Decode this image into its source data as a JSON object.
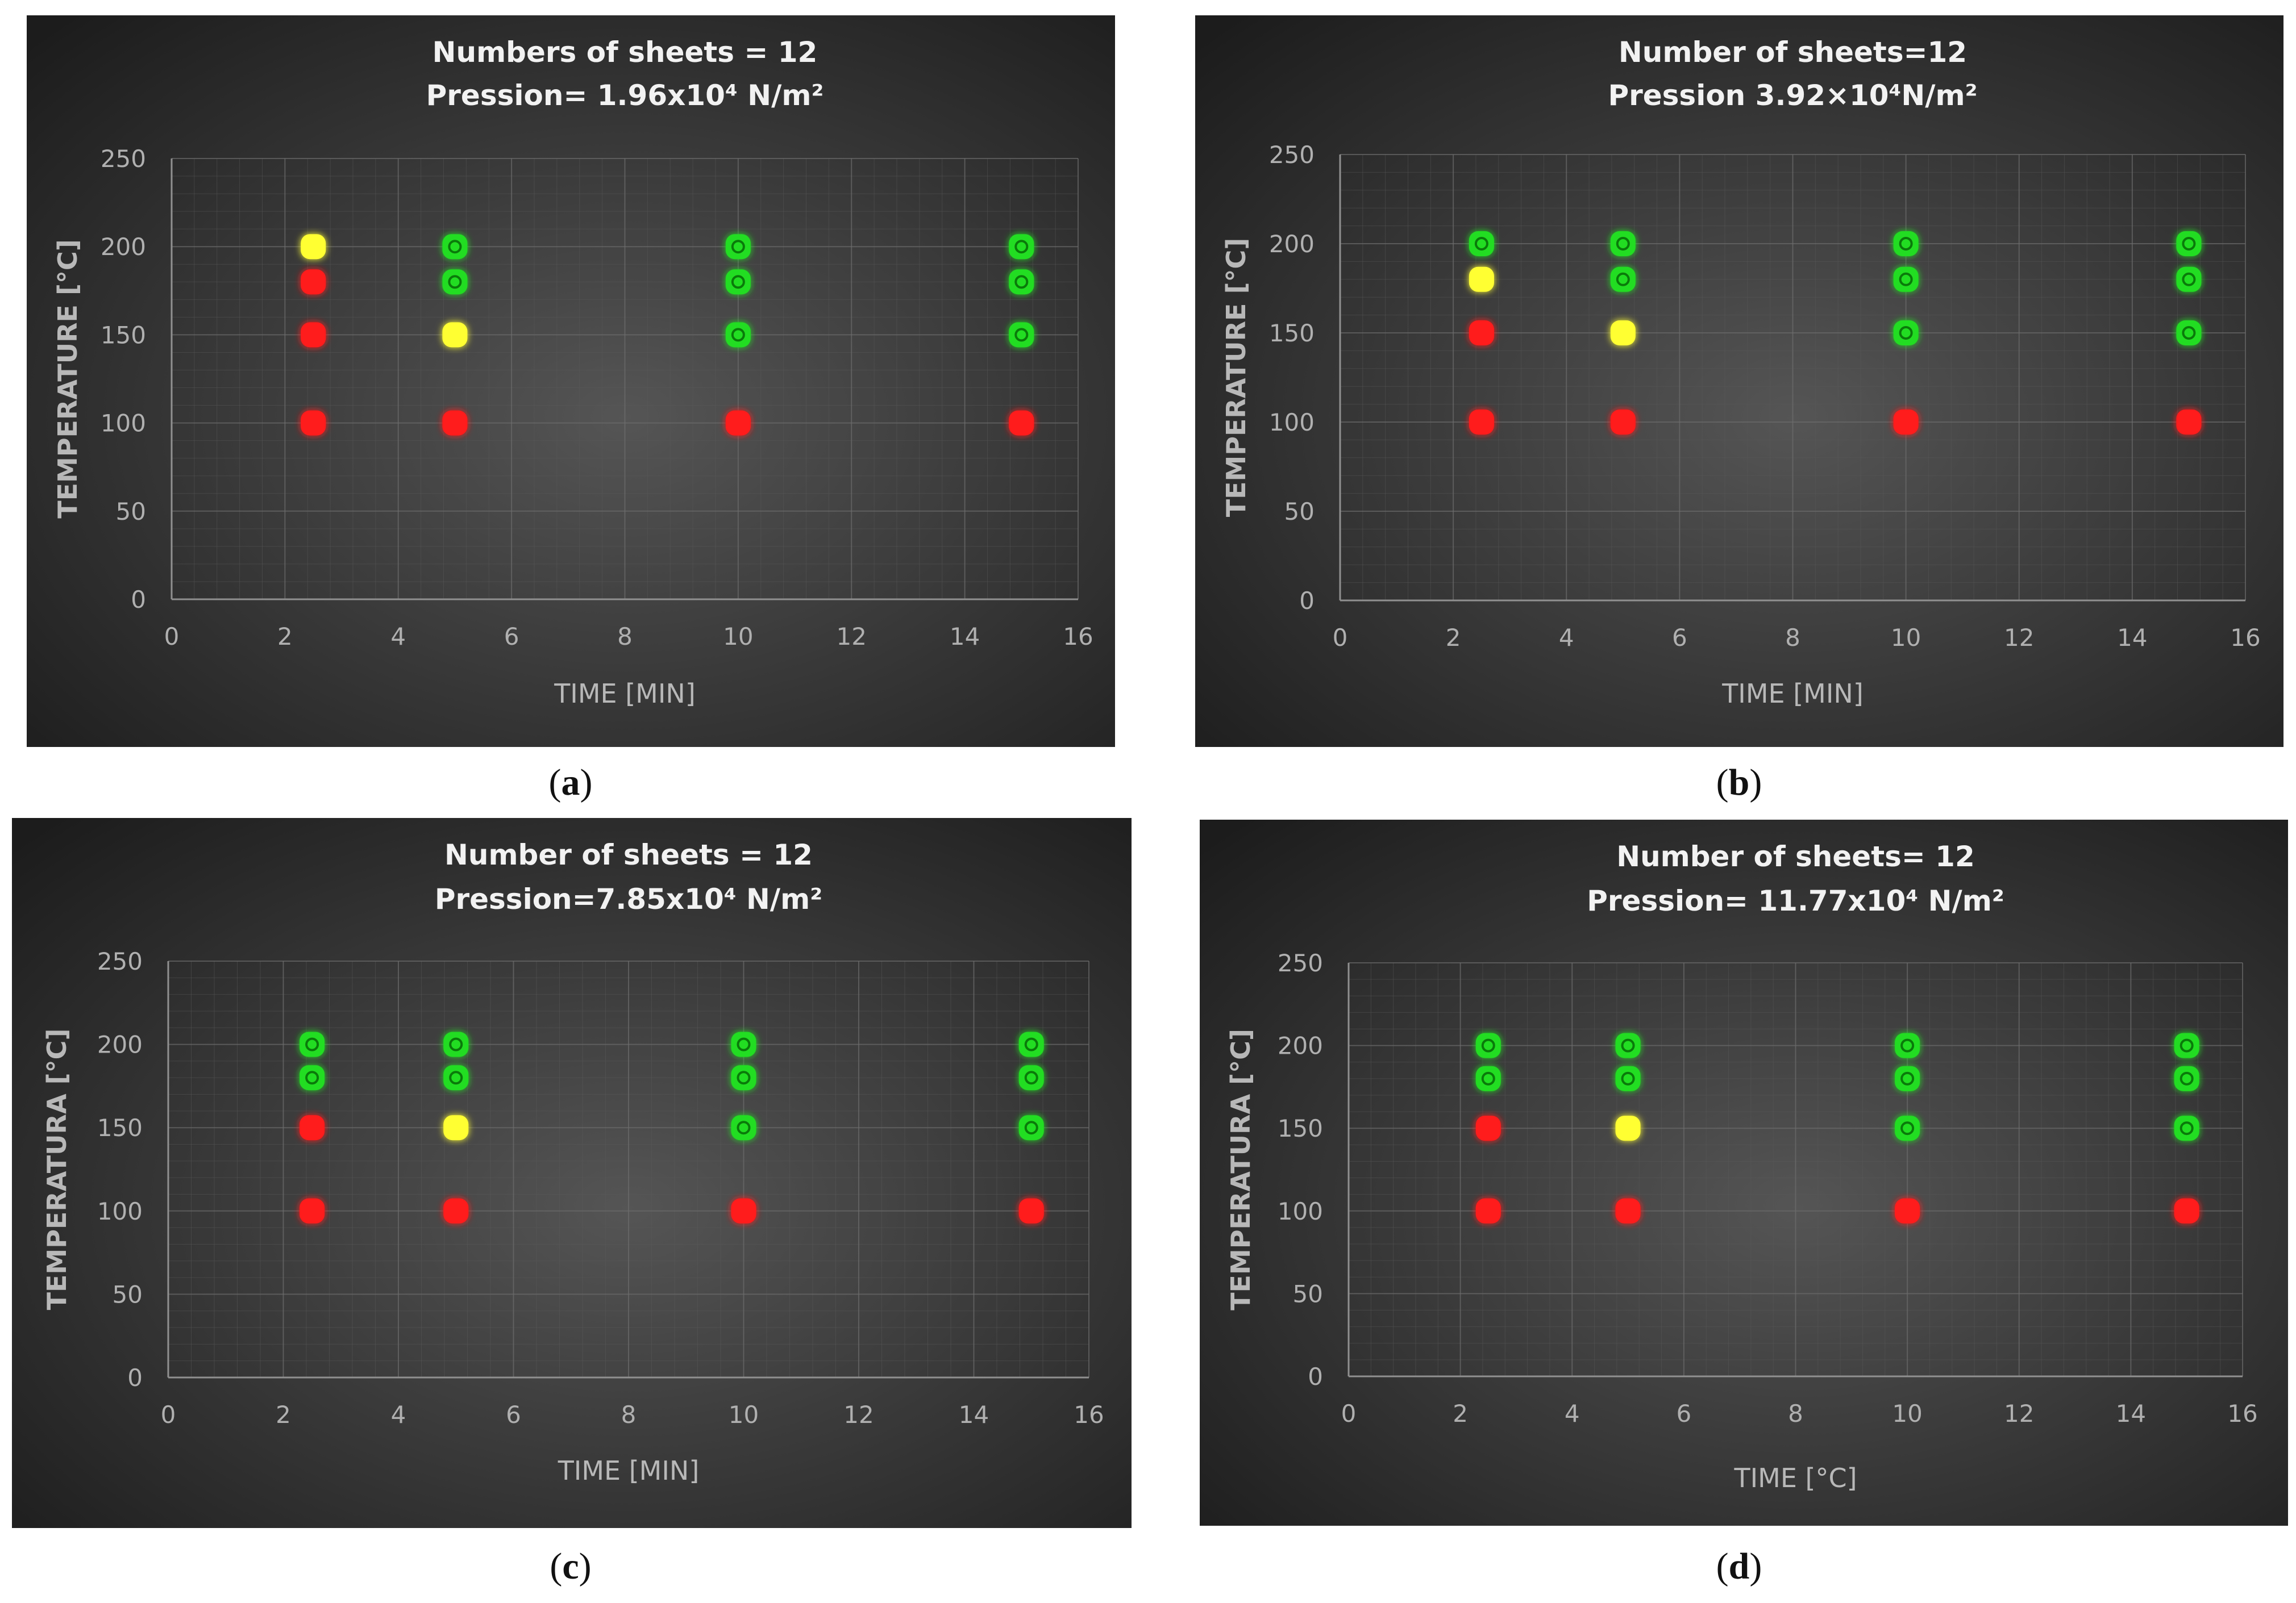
{
  "colors": {
    "red": "#ff1a1a",
    "yellow": "#ffff33",
    "green": "#22dd22",
    "background_center": "#555555",
    "background_edge": "#1c1c1c"
  },
  "chart_data": [
    {
      "type": "scatter",
      "panel": "a",
      "caption_letter": "a",
      "title_line1": "Numbers of sheets = 12",
      "title_line2": "Pression= 1.96x10⁴ N/m²",
      "xlabel": "TIME [MIN]",
      "ylabel": "TEMPERATURE [°C]",
      "xlim": [
        0,
        16
      ],
      "ylim": [
        0,
        250
      ],
      "xticks": [
        "0",
        "2",
        "4",
        "6",
        "8",
        "10",
        "12",
        "14",
        "16"
      ],
      "yticks": [
        "0",
        "50",
        "100",
        "150",
        "200",
        "250"
      ],
      "grid": true,
      "points": [
        {
          "x": 2.5,
          "y": 200,
          "color": "yellow"
        },
        {
          "x": 2.5,
          "y": 180,
          "color": "red"
        },
        {
          "x": 2.5,
          "y": 150,
          "color": "red"
        },
        {
          "x": 2.5,
          "y": 100,
          "color": "red"
        },
        {
          "x": 5,
          "y": 200,
          "color": "green"
        },
        {
          "x": 5,
          "y": 180,
          "color": "green"
        },
        {
          "x": 5,
          "y": 150,
          "color": "yellow"
        },
        {
          "x": 5,
          "y": 100,
          "color": "red"
        },
        {
          "x": 10,
          "y": 200,
          "color": "green"
        },
        {
          "x": 10,
          "y": 180,
          "color": "green"
        },
        {
          "x": 10,
          "y": 150,
          "color": "green"
        },
        {
          "x": 10,
          "y": 100,
          "color": "red"
        },
        {
          "x": 15,
          "y": 200,
          "color": "green"
        },
        {
          "x": 15,
          "y": 180,
          "color": "green"
        },
        {
          "x": 15,
          "y": 150,
          "color": "green"
        },
        {
          "x": 15,
          "y": 100,
          "color": "red"
        }
      ]
    },
    {
      "type": "scatter",
      "panel": "b",
      "caption_letter": "b",
      "title_line1": "Number of sheets=12",
      "title_line2": "Pression 3.92×10⁴N/m²",
      "xlabel": "TIME [MIN]",
      "ylabel": "TEMPERATURE [°C]",
      "xlim": [
        0,
        16
      ],
      "ylim": [
        0,
        250
      ],
      "xticks": [
        "0",
        "2",
        "4",
        "6",
        "8",
        "10",
        "12",
        "14",
        "16"
      ],
      "yticks": [
        "0",
        "50",
        "100",
        "150",
        "200",
        "250"
      ],
      "grid": true,
      "points": [
        {
          "x": 2.5,
          "y": 200,
          "color": "green"
        },
        {
          "x": 2.5,
          "y": 180,
          "color": "yellow"
        },
        {
          "x": 2.5,
          "y": 150,
          "color": "red"
        },
        {
          "x": 2.5,
          "y": 100,
          "color": "red"
        },
        {
          "x": 5,
          "y": 200,
          "color": "green"
        },
        {
          "x": 5,
          "y": 180,
          "color": "green"
        },
        {
          "x": 5,
          "y": 150,
          "color": "yellow"
        },
        {
          "x": 5,
          "y": 100,
          "color": "red"
        },
        {
          "x": 10,
          "y": 200,
          "color": "green"
        },
        {
          "x": 10,
          "y": 180,
          "color": "green"
        },
        {
          "x": 10,
          "y": 150,
          "color": "green"
        },
        {
          "x": 10,
          "y": 100,
          "color": "red"
        },
        {
          "x": 15,
          "y": 200,
          "color": "green"
        },
        {
          "x": 15,
          "y": 180,
          "color": "green"
        },
        {
          "x": 15,
          "y": 150,
          "color": "green"
        },
        {
          "x": 15,
          "y": 100,
          "color": "red"
        }
      ]
    },
    {
      "type": "scatter",
      "panel": "c",
      "caption_letter": "c",
      "title_line1": "Number of sheets = 12",
      "title_line2": "Pression=7.85x10⁴ N/m²",
      "xlabel": "TIME [MIN]",
      "ylabel": "TEMPERATURA [°C]",
      "xlim": [
        0,
        16
      ],
      "ylim": [
        0,
        250
      ],
      "xticks": [
        "0",
        "2",
        "4",
        "6",
        "8",
        "10",
        "12",
        "14",
        "16"
      ],
      "yticks": [
        "0",
        "50",
        "100",
        "150",
        "200",
        "250"
      ],
      "grid": true,
      "points": [
        {
          "x": 2.5,
          "y": 200,
          "color": "green"
        },
        {
          "x": 2.5,
          "y": 180,
          "color": "green"
        },
        {
          "x": 2.5,
          "y": 150,
          "color": "red"
        },
        {
          "x": 2.5,
          "y": 100,
          "color": "red"
        },
        {
          "x": 5,
          "y": 200,
          "color": "green"
        },
        {
          "x": 5,
          "y": 180,
          "color": "green"
        },
        {
          "x": 5,
          "y": 150,
          "color": "yellow"
        },
        {
          "x": 5,
          "y": 100,
          "color": "red"
        },
        {
          "x": 10,
          "y": 200,
          "color": "green"
        },
        {
          "x": 10,
          "y": 180,
          "color": "green"
        },
        {
          "x": 10,
          "y": 150,
          "color": "green"
        },
        {
          "x": 10,
          "y": 100,
          "color": "red"
        },
        {
          "x": 15,
          "y": 200,
          "color": "green"
        },
        {
          "x": 15,
          "y": 180,
          "color": "green"
        },
        {
          "x": 15,
          "y": 150,
          "color": "green"
        },
        {
          "x": 15,
          "y": 100,
          "color": "red"
        }
      ]
    },
    {
      "type": "scatter",
      "panel": "d",
      "caption_letter": "d",
      "title_line1": "Number of sheets= 12",
      "title_line2": "Pression= 11.77x10⁴ N/m²",
      "xlabel": "TIME [°C]",
      "ylabel": "TEMPERATURA [°C]",
      "xlim": [
        0,
        16
      ],
      "ylim": [
        0,
        250
      ],
      "xticks": [
        "0",
        "2",
        "4",
        "6",
        "8",
        "10",
        "12",
        "14",
        "16"
      ],
      "yticks": [
        "0",
        "50",
        "100",
        "150",
        "200",
        "250"
      ],
      "grid": true,
      "points": [
        {
          "x": 2.5,
          "y": 200,
          "color": "green"
        },
        {
          "x": 2.5,
          "y": 180,
          "color": "green"
        },
        {
          "x": 2.5,
          "y": 150,
          "color": "red"
        },
        {
          "x": 2.5,
          "y": 100,
          "color": "red"
        },
        {
          "x": 5,
          "y": 200,
          "color": "green"
        },
        {
          "x": 5,
          "y": 180,
          "color": "green"
        },
        {
          "x": 5,
          "y": 150,
          "color": "yellow"
        },
        {
          "x": 5,
          "y": 100,
          "color": "red"
        },
        {
          "x": 10,
          "y": 200,
          "color": "green"
        },
        {
          "x": 10,
          "y": 180,
          "color": "green"
        },
        {
          "x": 10,
          "y": 150,
          "color": "green"
        },
        {
          "x": 10,
          "y": 100,
          "color": "red"
        },
        {
          "x": 15,
          "y": 200,
          "color": "green"
        },
        {
          "x": 15,
          "y": 180,
          "color": "green"
        },
        {
          "x": 15,
          "y": 150,
          "color": "green"
        },
        {
          "x": 15,
          "y": 100,
          "color": "red"
        }
      ]
    }
  ]
}
